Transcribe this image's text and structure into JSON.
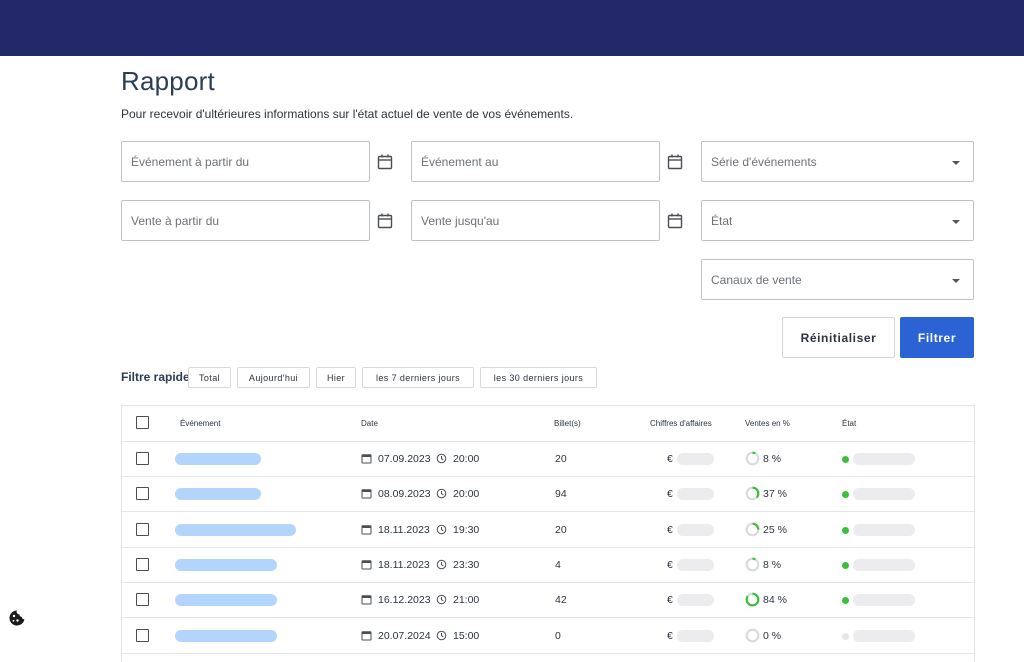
{
  "header": {
    "title": "Rapport",
    "subtitle": "Pour recevoir d'ultérieures informations sur l'état actuel de vente de vos événements."
  },
  "filters": {
    "event_from": "Événement à partir du",
    "event_to": "Événement au",
    "event_series": "Série d'événements",
    "sale_from": "Vente à partir du",
    "sale_to": "Vente jusqu'au",
    "state": "État",
    "sales_channels": "Canaux de vente"
  },
  "actions": {
    "reset_label": "Réinitialiser",
    "filter_label": "Filtrer"
  },
  "quick_filter": {
    "label": "Filtre rapide",
    "chips": [
      "Total",
      "Aujourd'hui",
      "Hier",
      "les 7 derniers jours",
      "les 30 derniers jours"
    ]
  },
  "table": {
    "columns": [
      "Événement",
      "Date",
      "Billet(s)",
      "Chiffres d'affaires",
      "Ventes en %",
      "État"
    ],
    "currency_symbol": "€",
    "rows": [
      {
        "date": "07.09.2023",
        "time": "20:00",
        "tickets": "20",
        "sales_percent": "8 %",
        "sales_value": 8,
        "state_color": "#3bbf3b"
      },
      {
        "date": "08.09.2023",
        "time": "20:00",
        "tickets": "94",
        "sales_percent": "37 %",
        "sales_value": 37,
        "state_color": "#3bbf3b"
      },
      {
        "date": "18.11.2023",
        "time": "19:30",
        "tickets": "20",
        "sales_percent": "25 %",
        "sales_value": 25,
        "state_color": "#3bbf3b"
      },
      {
        "date": "18.11.2023",
        "time": "23:30",
        "tickets": "4",
        "sales_percent": "8 %",
        "sales_value": 8,
        "state_color": "#3bbf3b"
      },
      {
        "date": "16.12.2023",
        "time": "21:00",
        "tickets": "42",
        "sales_percent": "84 %",
        "sales_value": 84,
        "state_color": "#3bbf3b"
      },
      {
        "date": "20.07.2024",
        "time": "15:00",
        "tickets": "0",
        "sales_percent": "0 %",
        "sales_value": 0,
        "state_color": "#e6e6e6"
      }
    ]
  },
  "colors": {
    "topbar": "#22286a",
    "primary": "#2b63d4",
    "name_placeholder": "#b3d5fb",
    "progress": "#3bbf3b"
  },
  "icons": {
    "calendar": "calendar-icon",
    "clock": "clock-icon",
    "dropdown": "chevron-down-icon",
    "cookie": "cookie-icon"
  }
}
